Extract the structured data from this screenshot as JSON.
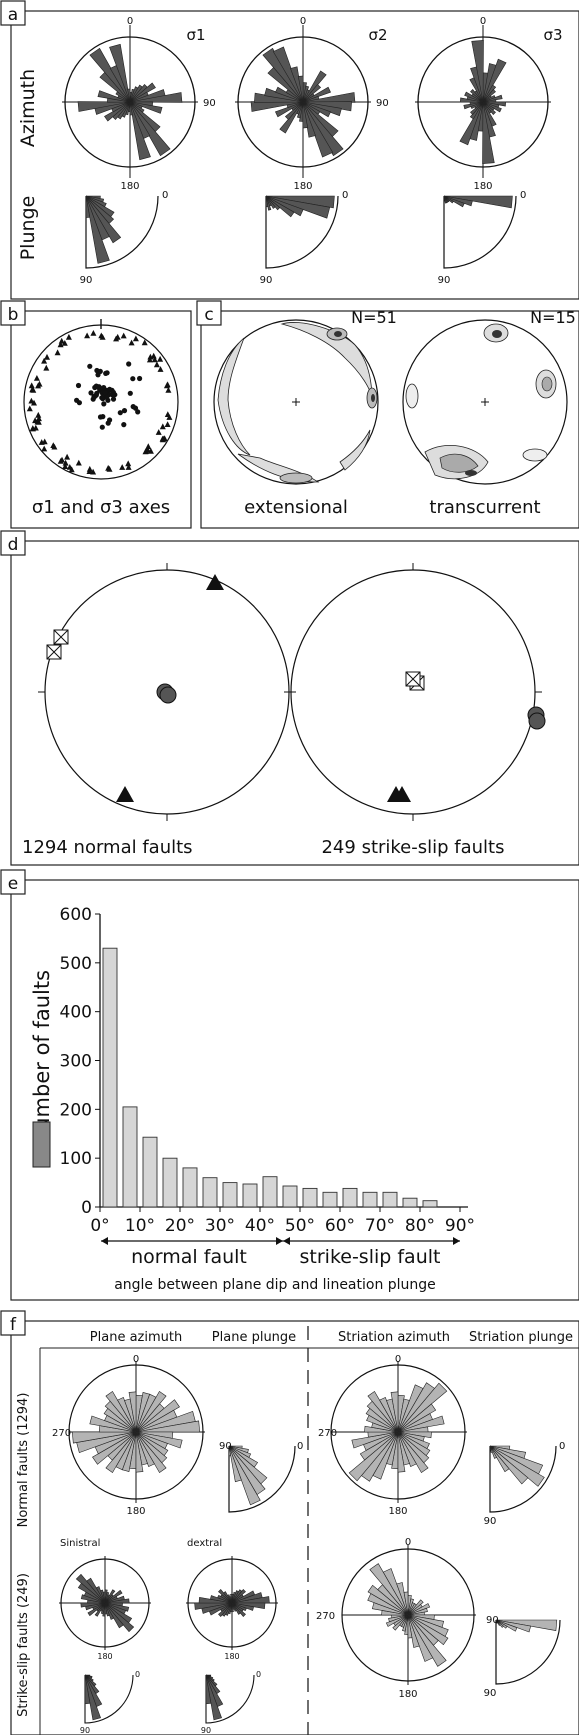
{
  "panel_a": {
    "letter": "a",
    "row_azimuth": "Azimuth",
    "row_plunge": "Plunge",
    "roses": [
      {
        "title": "σ1",
        "n": "0",
        "e": "90",
        "s": "180"
      },
      {
        "title": "σ2",
        "n": "0",
        "e": "90",
        "s": "180"
      },
      {
        "title": "σ3",
        "n": "0",
        "e": "90",
        "s": "180"
      }
    ],
    "plunge_zero": "0",
    "plunge_ninety": "90"
  },
  "panel_b": {
    "letter": "b",
    "caption": "σ1 and σ3 axes"
  },
  "panel_c": {
    "letter": "c",
    "left_n": "N=51",
    "right_n": "N=15",
    "left_caption": "extensional",
    "right_caption": "transcurrent"
  },
  "panel_d": {
    "letter": "d",
    "left_caption": "1294 normal faults",
    "right_caption": "249 strike-slip faults"
  },
  "panel_e": {
    "letter": "e",
    "normal_label": "normal fault",
    "strike_label": "strike-slip fault",
    "xcaption": "angle between plane dip and lineation plunge"
  },
  "panel_f": {
    "letter": "f",
    "col_plane_azimuth": "Plane azimuth",
    "col_plane_plunge": "Plane plunge",
    "col_striation_azimuth": "Striation azimuth",
    "col_striation_plunge": "Striation plunge",
    "row_normal": "Normal faults (1294)",
    "row_strike": "Strike-slip faults (249)",
    "sinistral": "Sinistral",
    "dextral": "dextral",
    "n0": "0",
    "n180": "180",
    "n270": "270",
    "n90": "90"
  },
  "chart_data": {
    "type": "bar",
    "title": "",
    "xlabel": "angle between plane dip and lineation plunge",
    "ylabel": "number of faults",
    "categories": [
      "0°",
      "5°",
      "10°",
      "15°",
      "20°",
      "25°",
      "30°",
      "35°",
      "40°",
      "45°",
      "50°",
      "55°",
      "60°",
      "65°",
      "70°",
      "75°",
      "80°",
      "85°"
    ],
    "values": [
      530,
      205,
      143,
      100,
      80,
      60,
      50,
      47,
      62,
      43,
      38,
      30,
      38,
      30,
      30,
      18,
      13,
      0
    ],
    "ylim": [
      0,
      600
    ],
    "yticks": [
      "0",
      "100",
      "200",
      "300",
      "400",
      "500",
      "600"
    ],
    "xticks": [
      "0°",
      "10°",
      "20°",
      "30°",
      "40°",
      "50°",
      "60°",
      "70°",
      "80°",
      "90°"
    ],
    "grid": false,
    "colors": {
      "bar": "#d6d6d6",
      "legend_swatch": "#888888",
      "dark_petal": "#555555",
      "light_petal": "#b4b4b4"
    }
  }
}
